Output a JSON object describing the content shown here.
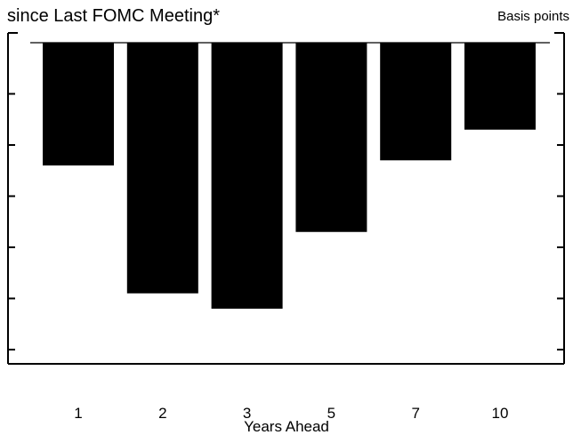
{
  "chart_data": {
    "type": "bar",
    "title": "since Last FOMC Meeting*",
    "units_label": "Basis points",
    "xlabel": "Years Ahead",
    "ylabel": "",
    "categories": [
      "1",
      "2",
      "3",
      "5",
      "7",
      "10"
    ],
    "values": [
      -24,
      -49,
      -52,
      -37,
      -23,
      -17
    ],
    "ylim": [
      -62,
      0
    ],
    "y_tick_step": 10,
    "grid": false,
    "legend": "none",
    "bar_color": "#000000"
  }
}
